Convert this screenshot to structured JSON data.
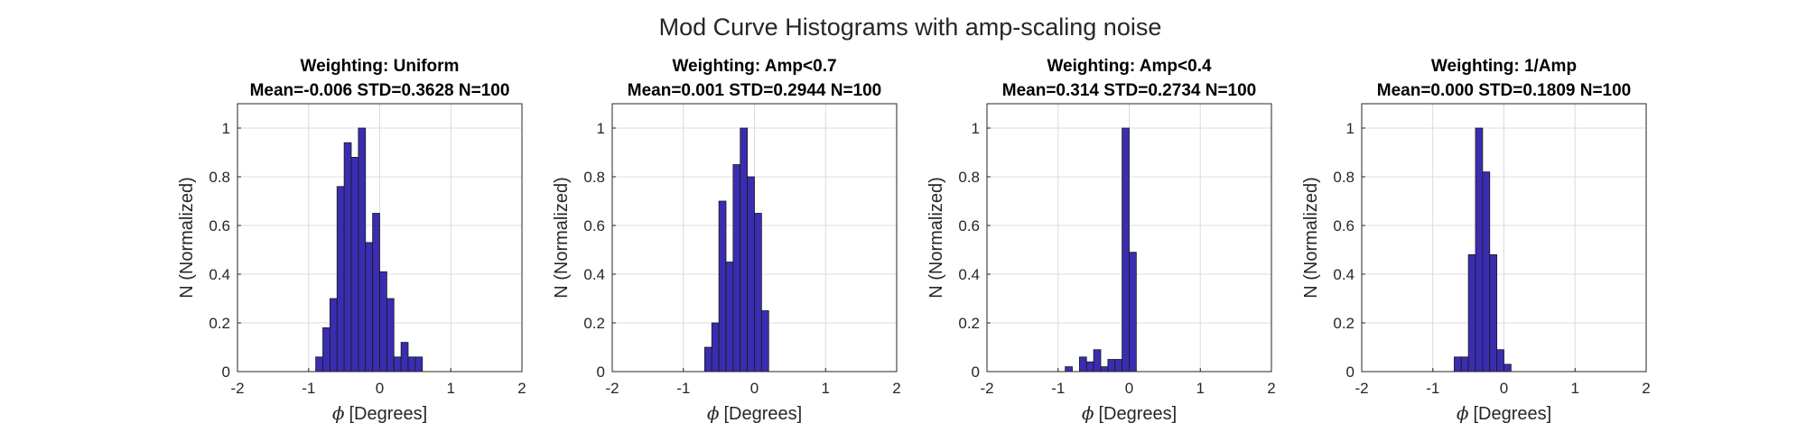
{
  "figure": {
    "title": "Mod Curve Histograms with amp-scaling noise"
  },
  "chart_data": [
    {
      "type": "bar",
      "title": "Weighting: Uniform",
      "subtitle": "Mean=-0.006 STD=0.3628 N=100",
      "xlabel_symbol": "ϕ",
      "xlabel": "[Degrees]",
      "ylabel": "N (Normalized)",
      "xlim": [
        -2,
        2
      ],
      "ylim": [
        0,
        1.1
      ],
      "xticks": [
        "-2",
        "-1",
        "0",
        "1",
        "2"
      ],
      "yticks": [
        "0",
        "0.2",
        "0.4",
        "0.6",
        "0.8",
        "1"
      ],
      "grid": true,
      "bar_color": "#3A2DB0",
      "bin_edges": [
        -1.6,
        -1.5,
        -1.4,
        -1.3,
        -1.2,
        -1.1,
        -1.0,
        -0.9,
        -0.8,
        -0.7,
        -0.6,
        -0.5,
        -0.4,
        -0.3,
        -0.2,
        -0.1,
        0.0,
        0.1,
        0.2,
        0.3,
        0.4,
        0.5,
        0.6,
        0.7,
        0.8,
        0.9,
        1.0,
        1.1,
        1.2,
        1.3,
        1.4,
        1.5,
        1.6,
        1.7
      ],
      "values": [
        0,
        0,
        0,
        0,
        0,
        0,
        0,
        0.06,
        0.18,
        0.3,
        0.76,
        0.94,
        0.88,
        1.0,
        0.53,
        0.65,
        0.41,
        0.3,
        0.06,
        0.12,
        0.06,
        0.06,
        0,
        0,
        0,
        0,
        0,
        0,
        0,
        0,
        0,
        0,
        0
      ]
    },
    {
      "type": "bar",
      "title": "Weighting: Amp<0.7",
      "subtitle": "Mean=0.001 STD=0.2944 N=100",
      "xlabel_symbol": "ϕ",
      "xlabel": "[Degrees]",
      "ylabel": "N (Normalized)",
      "xlim": [
        -2,
        2
      ],
      "ylim": [
        0,
        1.1
      ],
      "xticks": [
        "-2",
        "-1",
        "0",
        "1",
        "2"
      ],
      "yticks": [
        "0",
        "0.2",
        "0.4",
        "0.6",
        "0.8",
        "1"
      ],
      "grid": true,
      "bar_color": "#3A2DB0",
      "bin_edges": [
        -1.6,
        -1.5,
        -1.4,
        -1.3,
        -1.2,
        -1.1,
        -1.0,
        -0.9,
        -0.8,
        -0.7,
        -0.6,
        -0.5,
        -0.4,
        -0.3,
        -0.2,
        -0.1,
        0.0,
        0.1,
        0.2,
        0.3,
        0.4,
        0.5,
        0.6,
        0.7,
        0.8,
        0.9,
        1.0,
        1.1,
        1.2,
        1.3,
        1.4,
        1.5,
        1.6,
        1.7
      ],
      "values": [
        0,
        0,
        0,
        0,
        0,
        0,
        0,
        0,
        0,
        0.1,
        0.2,
        0.7,
        0.45,
        0.85,
        1.0,
        0.8,
        0.65,
        0.25,
        0,
        0,
        0,
        0,
        0,
        0,
        0,
        0,
        0,
        0,
        0,
        0,
        0,
        0,
        0
      ]
    },
    {
      "type": "bar",
      "title": "Weighting: Amp<0.4",
      "subtitle": "Mean=0.314 STD=0.2734 N=100",
      "xlabel_symbol": "ϕ",
      "xlabel": "[Degrees]",
      "ylabel": "N (Normalized)",
      "xlim": [
        -2,
        2
      ],
      "ylim": [
        0,
        1.1
      ],
      "xticks": [
        "-2",
        "-1",
        "0",
        "1",
        "2"
      ],
      "yticks": [
        "0",
        "0.2",
        "0.4",
        "0.6",
        "0.8",
        "1"
      ],
      "grid": true,
      "bar_color": "#3A2DB0",
      "bin_edges": [
        -1.6,
        -1.5,
        -1.4,
        -1.3,
        -1.2,
        -1.1,
        -1.0,
        -0.9,
        -0.8,
        -0.7,
        -0.6,
        -0.5,
        -0.4,
        -0.3,
        -0.2,
        -0.1,
        0.0,
        0.1,
        0.2,
        0.3,
        0.4,
        0.5,
        0.6,
        0.7,
        0.8,
        0.9,
        1.0,
        1.1,
        1.2,
        1.3,
        1.4,
        1.5,
        1.6,
        1.7
      ],
      "values": [
        0,
        0,
        0,
        0,
        0,
        0,
        0,
        0.02,
        0,
        0.06,
        0.04,
        0.09,
        0.02,
        0.05,
        0.05,
        1.0,
        0.49,
        0,
        0,
        0,
        0,
        0,
        0,
        0,
        0,
        0,
        0,
        0,
        0,
        0,
        0,
        0,
        0
      ]
    },
    {
      "type": "bar",
      "title": "Weighting: 1/Amp",
      "subtitle": "Mean=0.000 STD=0.1809 N=100",
      "xlabel_symbol": "ϕ",
      "xlabel": "[Degrees]",
      "ylabel": "N (Normalized)",
      "xlim": [
        -2,
        2
      ],
      "ylim": [
        0,
        1.1
      ],
      "xticks": [
        "-2",
        "-1",
        "0",
        "1",
        "2"
      ],
      "yticks": [
        "0",
        "0.2",
        "0.4",
        "0.6",
        "0.8",
        "1"
      ],
      "grid": true,
      "bar_color": "#3A2DB0",
      "bin_edges": [
        -1.6,
        -1.5,
        -1.4,
        -1.3,
        -1.2,
        -1.1,
        -1.0,
        -0.9,
        -0.8,
        -0.7,
        -0.6,
        -0.5,
        -0.4,
        -0.3,
        -0.2,
        -0.1,
        0.0,
        0.1,
        0.2,
        0.3,
        0.4,
        0.5,
        0.6,
        0.7,
        0.8,
        0.9,
        1.0,
        1.1,
        1.2,
        1.3,
        1.4,
        1.5,
        1.6,
        1.7
      ],
      "values": [
        0,
        0,
        0,
        0,
        0,
        0,
        0,
        0,
        0,
        0.06,
        0.06,
        0.48,
        1.0,
        0.82,
        0.48,
        0.09,
        0.03,
        0,
        0,
        0,
        0,
        0,
        0,
        0,
        0,
        0,
        0,
        0,
        0,
        0,
        0,
        0,
        0
      ]
    }
  ]
}
